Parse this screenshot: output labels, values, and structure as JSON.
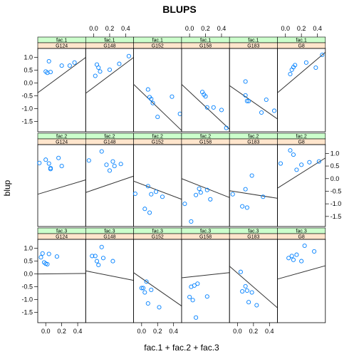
{
  "chart_data": {
    "type": "scatter",
    "title": "BLUPS",
    "xlabel": "fac.1 + fac.2 + fac.3",
    "ylabel": "blup",
    "xlim": [
      -0.1,
      0.5
    ],
    "ylim": [
      -1.9,
      1.35
    ],
    "x_ticks": [
      0.0,
      0.2,
      0.4
    ],
    "x_tick_labels": [
      "0.0",
      "0.2",
      "0.4"
    ],
    "y_ticks": [
      -1.5,
      -1.0,
      -0.5,
      0.0,
      0.5,
      1.0
    ],
    "y_tick_labels": [
      "-1.5",
      "-1.0",
      "-0.5",
      "0.0",
      "0.5",
      "1.0"
    ],
    "grid": false,
    "legend": "none",
    "colors": {
      "points": "#0080ff",
      "line": "#333333",
      "strip_factor": "#ccffcc",
      "strip_group": "#ffe5cc",
      "frame": "#000000"
    },
    "factors": [
      "fac.1",
      "fac.2",
      "fac.3"
    ],
    "groups": [
      "G124",
      "G148",
      "G152",
      "G158",
      "G183",
      "G8"
    ],
    "panels": [
      {
        "factor": "fac.1",
        "group": "G124",
        "line": [
          [
            -0.1,
            -0.38
          ],
          [
            0.5,
            1.0
          ]
        ],
        "points": [
          [
            0.0,
            0.45
          ],
          [
            0.02,
            0.4
          ],
          [
            0.04,
            0.85
          ],
          [
            0.06,
            0.43
          ],
          [
            0.2,
            0.68
          ],
          [
            0.3,
            0.68
          ],
          [
            0.36,
            0.8
          ]
        ]
      },
      {
        "factor": "fac.1",
        "group": "G148",
        "line": [
          [
            -0.1,
            -0.4
          ],
          [
            0.5,
            1.0
          ]
        ],
        "points": [
          [
            0.02,
            0.28
          ],
          [
            0.04,
            0.72
          ],
          [
            0.06,
            0.6
          ],
          [
            0.08,
            0.45
          ],
          [
            0.2,
            0.52
          ],
          [
            0.32,
            0.75
          ],
          [
            0.44,
            1.05
          ]
        ]
      },
      {
        "factor": "fac.1",
        "group": "G152",
        "line": [
          [
            -0.1,
            -0.05
          ],
          [
            0.5,
            -1.85
          ]
        ],
        "points": [
          [
            0.08,
            -0.25
          ],
          [
            0.1,
            -0.55
          ],
          [
            0.12,
            -0.62
          ],
          [
            0.14,
            -0.78
          ],
          [
            0.2,
            -1.32
          ],
          [
            0.38,
            -0.53
          ],
          [
            0.48,
            -1.2
          ]
        ]
      },
      {
        "factor": "fac.1",
        "group": "G158",
        "line": [
          [
            -0.1,
            -0.05
          ],
          [
            0.5,
            -1.8
          ]
        ],
        "points": [
          [
            0.16,
            -0.35
          ],
          [
            0.18,
            -0.45
          ],
          [
            0.2,
            -0.52
          ],
          [
            0.22,
            -0.95
          ],
          [
            0.3,
            -0.95
          ],
          [
            0.4,
            -1.05
          ],
          [
            0.46,
            -1.75
          ]
        ]
      },
      {
        "factor": "fac.1",
        "group": "G183",
        "line": [
          [
            -0.1,
            -0.1
          ],
          [
            0.5,
            -1.4
          ]
        ],
        "points": [
          [
            0.1,
            0.06
          ],
          [
            0.1,
            -0.48
          ],
          [
            0.12,
            -0.7
          ],
          [
            0.14,
            -0.7
          ],
          [
            0.3,
            -1.15
          ],
          [
            0.36,
            -0.65
          ],
          [
            0.46,
            -1.08
          ]
        ]
      },
      {
        "factor": "fac.1",
        "group": "G8",
        "line": [
          [
            -0.1,
            -0.38
          ],
          [
            0.5,
            1.2
          ]
        ],
        "points": [
          [
            0.06,
            0.35
          ],
          [
            0.08,
            0.52
          ],
          [
            0.1,
            0.62
          ],
          [
            0.12,
            0.7
          ],
          [
            0.26,
            0.8
          ],
          [
            0.38,
            0.6
          ],
          [
            0.46,
            1.1
          ]
        ]
      },
      {
        "factor": "fac.2",
        "group": "G124",
        "line": [
          [
            -0.1,
            -0.62
          ],
          [
            0.5,
            -0.05
          ]
        ],
        "points": [
          [
            -0.08,
            0.62
          ],
          [
            0.0,
            0.75
          ],
          [
            0.04,
            0.6
          ],
          [
            0.06,
            0.38
          ],
          [
            0.06,
            0.42
          ],
          [
            0.16,
            0.82
          ],
          [
            0.2,
            0.5
          ]
        ]
      },
      {
        "factor": "fac.2",
        "group": "G148",
        "line": [
          [
            -0.1,
            -0.55
          ],
          [
            0.5,
            0.1
          ]
        ],
        "points": [
          [
            -0.06,
            0.72
          ],
          [
            0.1,
            1.08
          ],
          [
            0.16,
            0.55
          ],
          [
            0.2,
            0.32
          ],
          [
            0.24,
            0.68
          ],
          [
            0.26,
            0.5
          ],
          [
            0.34,
            0.58
          ]
        ]
      },
      {
        "factor": "fac.2",
        "group": "G152",
        "line": [
          [
            -0.1,
            -0.1
          ],
          [
            0.5,
            -0.82
          ]
        ],
        "points": [
          [
            -0.08,
            -0.6
          ],
          [
            0.04,
            -1.2
          ],
          [
            0.08,
            -0.3
          ],
          [
            0.1,
            -1.35
          ],
          [
            0.12,
            -0.62
          ],
          [
            0.18,
            -0.52
          ],
          [
            0.26,
            -0.72
          ]
        ]
      },
      {
        "factor": "fac.2",
        "group": "G158",
        "line": [
          [
            -0.1,
            0.0
          ],
          [
            0.5,
            -0.75
          ]
        ],
        "points": [
          [
            -0.06,
            -1.0
          ],
          [
            0.02,
            -1.7
          ],
          [
            0.08,
            -0.65
          ],
          [
            0.12,
            -0.4
          ],
          [
            0.14,
            -0.55
          ],
          [
            0.22,
            -0.45
          ],
          [
            0.26,
            -0.82
          ]
        ]
      },
      {
        "factor": "fac.2",
        "group": "G183",
        "line": [
          [
            -0.1,
            -0.48
          ],
          [
            0.5,
            -0.78
          ]
        ],
        "points": [
          [
            -0.06,
            -0.62
          ],
          [
            0.06,
            -1.1
          ],
          [
            0.1,
            -0.42
          ],
          [
            0.12,
            -1.15
          ],
          [
            0.18,
            0.12
          ],
          [
            0.32,
            -0.72
          ]
        ]
      },
      {
        "factor": "fac.2",
        "group": "G8",
        "line": [
          [
            -0.1,
            -0.38
          ],
          [
            0.5,
            0.82
          ]
        ],
        "points": [
          [
            -0.06,
            0.6
          ],
          [
            0.06,
            1.12
          ],
          [
            0.1,
            0.95
          ],
          [
            0.14,
            0.35
          ],
          [
            0.2,
            0.55
          ],
          [
            0.3,
            0.65
          ],
          [
            0.42,
            0.68
          ]
        ]
      },
      {
        "factor": "fac.3",
        "group": "G124",
        "line": [
          [
            -0.1,
            0.0
          ],
          [
            0.5,
            0.02
          ]
        ],
        "points": [
          [
            -0.06,
            0.65
          ],
          [
            -0.04,
            0.8
          ],
          [
            -0.02,
            0.45
          ],
          [
            0.0,
            0.4
          ],
          [
            0.02,
            0.38
          ],
          [
            0.04,
            0.78
          ],
          [
            0.14,
            0.68
          ]
        ]
      },
      {
        "factor": "fac.3",
        "group": "G148",
        "line": [
          [
            -0.1,
            0.12
          ],
          [
            0.5,
            -0.25
          ]
        ],
        "points": [
          [
            -0.02,
            0.7
          ],
          [
            0.02,
            0.7
          ],
          [
            0.04,
            0.5
          ],
          [
            0.06,
            0.35
          ],
          [
            0.1,
            1.05
          ],
          [
            0.12,
            0.62
          ],
          [
            0.24,
            0.5
          ]
        ]
      },
      {
        "factor": "fac.3",
        "group": "G152",
        "line": [
          [
            -0.1,
            0.05
          ],
          [
            0.5,
            -1.25
          ]
        ],
        "points": [
          [
            0.0,
            -0.55
          ],
          [
            0.02,
            -0.55
          ],
          [
            0.04,
            -0.72
          ],
          [
            0.06,
            -0.3
          ],
          [
            0.08,
            -1.15
          ],
          [
            0.12,
            -0.62
          ],
          [
            0.22,
            -1.3
          ]
        ]
      },
      {
        "factor": "fac.3",
        "group": "G158",
        "line": [
          [
            -0.1,
            -0.15
          ],
          [
            0.5,
            0.05
          ]
        ],
        "points": [
          [
            0.0,
            -0.9
          ],
          [
            0.02,
            -0.5
          ],
          [
            0.04,
            -1.02
          ],
          [
            0.06,
            -0.45
          ],
          [
            0.08,
            -1.7
          ],
          [
            0.1,
            -0.38
          ],
          [
            0.22,
            -0.88
          ]
        ]
      },
      {
        "factor": "fac.3",
        "group": "G183",
        "line": [
          [
            -0.1,
            0.3
          ],
          [
            0.5,
            -1.32
          ]
        ],
        "points": [
          [
            0.04,
            0.08
          ],
          [
            0.06,
            -0.68
          ],
          [
            0.1,
            -0.48
          ],
          [
            0.12,
            -0.65
          ],
          [
            0.14,
            -1.1
          ],
          [
            0.18,
            -0.72
          ],
          [
            0.24,
            -1.22
          ]
        ]
      },
      {
        "factor": "fac.3",
        "group": "G8",
        "line": [
          [
            -0.1,
            -0.2
          ],
          [
            0.5,
            0.32
          ]
        ],
        "points": [
          [
            0.04,
            0.62
          ],
          [
            0.08,
            0.7
          ],
          [
            0.1,
            0.55
          ],
          [
            0.14,
            0.75
          ],
          [
            0.2,
            0.5
          ],
          [
            0.24,
            1.1
          ],
          [
            0.36,
            0.88
          ]
        ]
      }
    ]
  }
}
